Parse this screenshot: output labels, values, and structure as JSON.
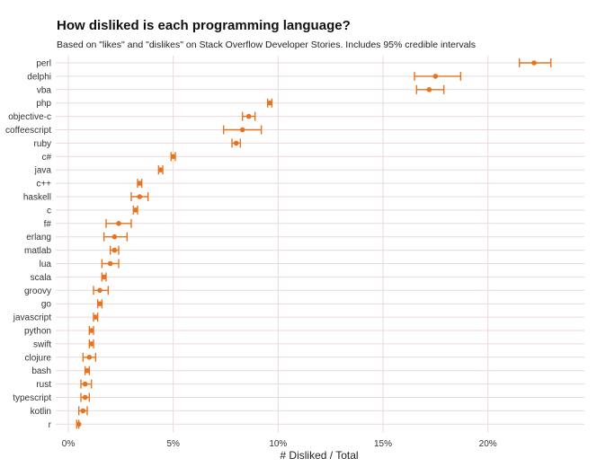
{
  "chart_data": {
    "type": "scatter",
    "title": "How disliked is each programming language?",
    "subtitle": "Based on \"likes\" and \"dislikes\" on Stack Overflow Developer Stories. Includes 95% credible intervals",
    "xlabel": "# Disliked / Total",
    "ylabel": "",
    "xlim": [
      -0.006,
      0.246
    ],
    "x_ticks": [
      0,
      0.05,
      0.1,
      0.15,
      0.2
    ],
    "x_tick_labels": [
      "0%",
      "5%",
      "10%",
      "15%",
      "20%"
    ],
    "grid": true,
    "point_color": "#E8731F",
    "grid_color": "#ead9df",
    "languages": [
      "perl",
      "delphi",
      "vba",
      "php",
      "objective-c",
      "coffeescript",
      "ruby",
      "c#",
      "java",
      "c++",
      "haskell",
      "c",
      "f#",
      "erlang",
      "matlab",
      "lua",
      "scala",
      "groovy",
      "go",
      "javascript",
      "python",
      "swift",
      "clojure",
      "bash",
      "rust",
      "typescript",
      "kotlin",
      "r"
    ],
    "estimate": [
      0.222,
      0.175,
      0.172,
      0.096,
      0.086,
      0.083,
      0.08,
      0.05,
      0.044,
      0.034,
      0.034,
      0.032,
      0.024,
      0.022,
      0.022,
      0.02,
      0.017,
      0.015,
      0.015,
      0.013,
      0.011,
      0.011,
      0.01,
      0.009,
      0.008,
      0.008,
      0.007,
      0.005
    ],
    "lower": [
      0.215,
      0.165,
      0.166,
      0.095,
      0.083,
      0.074,
      0.078,
      0.049,
      0.043,
      0.033,
      0.03,
      0.031,
      0.018,
      0.017,
      0.02,
      0.016,
      0.016,
      0.012,
      0.014,
      0.012,
      0.01,
      0.01,
      0.007,
      0.008,
      0.006,
      0.006,
      0.005,
      0.004
    ],
    "upper": [
      0.23,
      0.187,
      0.179,
      0.097,
      0.089,
      0.092,
      0.082,
      0.051,
      0.045,
      0.035,
      0.038,
      0.033,
      0.03,
      0.028,
      0.024,
      0.024,
      0.018,
      0.019,
      0.016,
      0.014,
      0.012,
      0.012,
      0.013,
      0.01,
      0.011,
      0.01,
      0.009,
      0.005
    ]
  }
}
